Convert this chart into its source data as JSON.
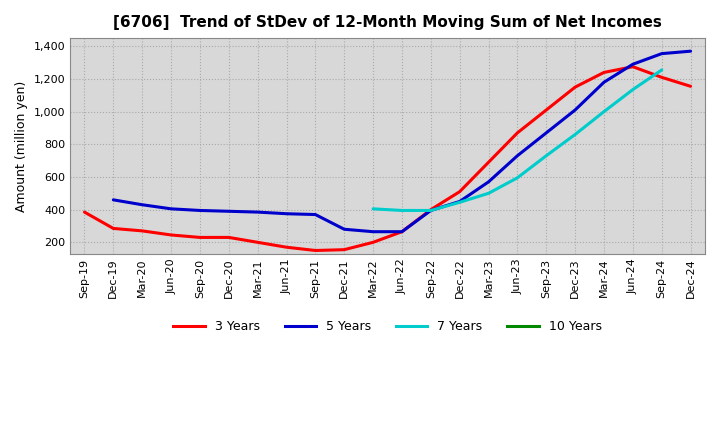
{
  "title": "[6706]  Trend of StDev of 12-Month Moving Sum of Net Incomes",
  "ylabel": "Amount (million yen)",
  "background_color": "#ffffff",
  "grid_color": "#aaaaaa",
  "plot_bg_color": "#d8d8d8",
  "ylim": [
    130,
    1450
  ],
  "yticks": [
    200,
    400,
    600,
    800,
    1000,
    1200,
    1400
  ],
  "series": {
    "3 Years": {
      "color": "#ff0000",
      "x": [
        "Sep-19",
        "Dec-19",
        "Mar-20",
        "Jun-20",
        "Sep-20",
        "Dec-20",
        "Mar-21",
        "Jun-21",
        "Sep-21",
        "Dec-21",
        "Mar-22",
        "Jun-22",
        "Sep-22",
        "Dec-22",
        "Mar-23",
        "Jun-23",
        "Sep-23",
        "Dec-23",
        "Mar-24",
        "Jun-24",
        "Sep-24",
        "Dec-24"
      ],
      "y": [
        385,
        285,
        270,
        245,
        230,
        230,
        200,
        170,
        150,
        155,
        200,
        265,
        400,
        510,
        690,
        870,
        1010,
        1150,
        1240,
        1275,
        1210,
        1155
      ]
    },
    "5 Years": {
      "color": "#0000cc",
      "x": [
        "Dec-19",
        "Mar-20",
        "Jun-20",
        "Sep-20",
        "Dec-20",
        "Mar-21",
        "Jun-21",
        "Sep-21",
        "Dec-21",
        "Mar-22",
        "Jun-22",
        "Sep-22",
        "Dec-22",
        "Mar-23",
        "Jun-23",
        "Sep-23",
        "Dec-23",
        "Mar-24",
        "Jun-24",
        "Sep-24",
        "Dec-24"
      ],
      "y": [
        460,
        430,
        405,
        395,
        390,
        385,
        375,
        370,
        280,
        265,
        265,
        395,
        450,
        570,
        730,
        870,
        1010,
        1180,
        1290,
        1355,
        1370
      ]
    },
    "7 Years": {
      "color": "#00cccc",
      "x": [
        "Mar-22",
        "Jun-22",
        "Sep-22",
        "Dec-22",
        "Mar-23",
        "Jun-23",
        "Sep-23",
        "Dec-23",
        "Mar-24",
        "Jun-24",
        "Sep-24"
      ],
      "y": [
        405,
        395,
        395,
        445,
        500,
        595,
        730,
        860,
        1000,
        1135,
        1255
      ]
    },
    "10 Years": {
      "color": "#008800",
      "x": [],
      "y": []
    }
  },
  "legend_labels": [
    "3 Years",
    "5 Years",
    "7 Years",
    "10 Years"
  ],
  "legend_colors": [
    "#ff0000",
    "#0000cc",
    "#00cccc",
    "#008800"
  ],
  "xtick_labels": [
    "Sep-19",
    "Dec-19",
    "Mar-20",
    "Jun-20",
    "Sep-20",
    "Dec-20",
    "Mar-21",
    "Jun-21",
    "Sep-21",
    "Dec-21",
    "Mar-22",
    "Jun-22",
    "Sep-22",
    "Dec-22",
    "Mar-23",
    "Jun-23",
    "Sep-23",
    "Dec-23",
    "Mar-24",
    "Jun-24",
    "Sep-24",
    "Dec-24"
  ]
}
